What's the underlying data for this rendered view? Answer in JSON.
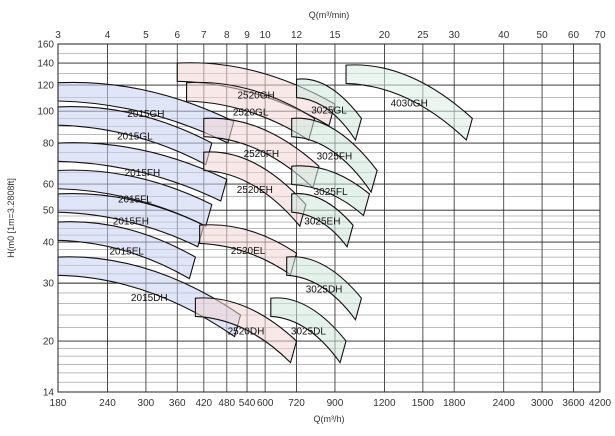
{
  "chart_data": {
    "type": "area",
    "title": "",
    "x_top_label": "Q(m³/min)",
    "x_bottom_label": "Q(m³/h)",
    "y_label": "H(m0 [1m=3.2808ft]",
    "x_scale": "log",
    "y_scale": "log",
    "xlim_m3h": [
      180,
      4200
    ],
    "ylim_m": [
      14,
      160
    ],
    "top_ticks": [
      "3",
      "4",
      "5",
      "6",
      "7",
      "8",
      "9",
      "10",
      "12",
      "15",
      "20",
      "25",
      "30",
      "40",
      "50",
      "60",
      "70"
    ],
    "bottom_ticks": [
      "180",
      "240",
      "300",
      "360",
      "420",
      "480",
      "540",
      "600",
      "720",
      "900",
      "1200",
      "1500",
      "1800",
      "2400",
      "3000",
      "3600",
      "4200"
    ],
    "y_ticks": [
      "14",
      "20",
      "30",
      "40",
      "50",
      "60",
      "80",
      "100",
      "120",
      "140",
      "160"
    ],
    "grid": true,
    "zone_groups": [
      {
        "name": "2015",
        "color": "#c6cff0"
      },
      {
        "name": "2520",
        "color": "#f2d6d6"
      },
      {
        "name": "3025",
        "color": "#cfe8dc"
      },
      {
        "name": "4030",
        "color": "#dcefe6"
      }
    ],
    "zones": [
      {
        "label": "2015GH",
        "group": "2015",
        "left": [
          180,
          122
        ],
        "right": [
          500,
          93
        ]
      },
      {
        "label": "2015GL",
        "group": "2015",
        "left": [
          180,
          103
        ],
        "right": [
          440,
          80
        ]
      },
      {
        "label": "2015FH",
        "group": "2015",
        "left": [
          180,
          80
        ],
        "right": [
          480,
          62
        ]
      },
      {
        "label": "2015FL",
        "group": "2015",
        "left": [
          180,
          66
        ],
        "right": [
          440,
          52
        ]
      },
      {
        "label": "2015EH",
        "group": "2015",
        "left": [
          180,
          56
        ],
        "right": [
          420,
          45
        ]
      },
      {
        "label": "2015EL",
        "group": "2015",
        "left": [
          180,
          46
        ],
        "right": [
          400,
          36
        ]
      },
      {
        "label": "2015DH",
        "group": "2015",
        "left": [
          180,
          36
        ],
        "right": [
          520,
          24
        ]
      },
      {
        "label": "2520GH",
        "group": "2520",
        "left": [
          360,
          140
        ],
        "right": [
          900,
          105
        ]
      },
      {
        "label": "2520GL",
        "group": "2520",
        "left": [
          380,
          122
        ],
        "right": [
          800,
          95
        ]
      },
      {
        "label": "2520FH",
        "group": "2520",
        "left": [
          420,
          95
        ],
        "right": [
          820,
          68
        ]
      },
      {
        "label": "2520EH",
        "group": "2520",
        "left": [
          420,
          75
        ],
        "right": [
          760,
          52
        ]
      },
      {
        "label": "2520EL",
        "group": "2520",
        "left": [
          410,
          45
        ],
        "right": [
          720,
          37
        ]
      },
      {
        "label": "2520DH",
        "group": "2520",
        "left": [
          400,
          27
        ],
        "right": [
          720,
          20
        ]
      },
      {
        "label": "3025GL",
        "group": "3025",
        "left": [
          720,
          125
        ],
        "right": [
          1050,
          95
        ]
      },
      {
        "label": "3025FH",
        "group": "3025",
        "left": [
          700,
          95
        ],
        "right": [
          1150,
          66
        ]
      },
      {
        "label": "3025FL",
        "group": "3025",
        "left": [
          700,
          68
        ],
        "right": [
          1100,
          56
        ]
      },
      {
        "label": "3025EH",
        "group": "3025",
        "left": [
          700,
          56
        ],
        "right": [
          1000,
          45
        ]
      },
      {
        "label": "3025DH",
        "group": "3025",
        "left": [
          680,
          36
        ],
        "right": [
          1050,
          27
        ]
      },
      {
        "label": "3025DL",
        "group": "3025",
        "left": [
          620,
          27
        ],
        "right": [
          960,
          20
        ]
      },
      {
        "label": "4030GH",
        "group": "4030",
        "left": [
          960,
          138
        ],
        "right": [
          2000,
          95
        ]
      }
    ]
  }
}
